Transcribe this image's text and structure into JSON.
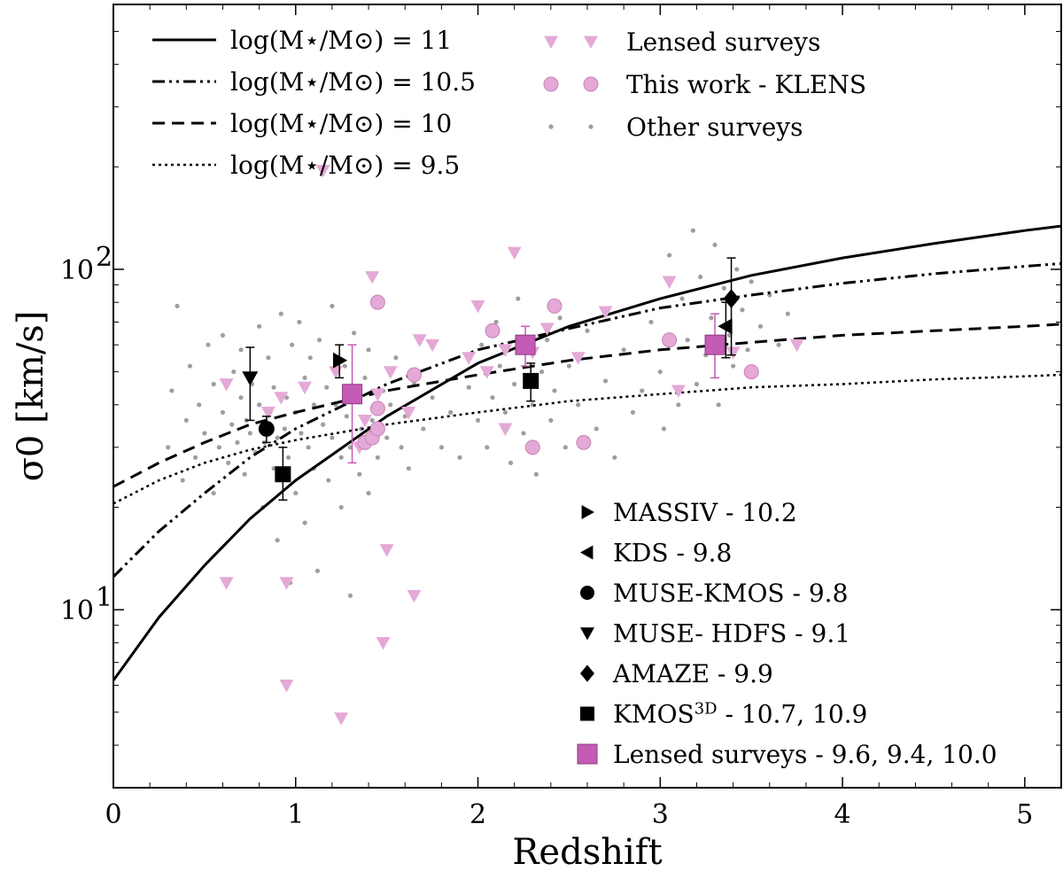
{
  "chart_data": {
    "type": "scatter",
    "xlabel": "Redshift",
    "ylabel": "σ0 [km/s]",
    "xlim": [
      0,
      5.2
    ],
    "ylim": [
      3,
      600
    ],
    "yscale": "log",
    "xticks": [
      {
        "value": 0,
        "label": "0"
      },
      {
        "value": 1,
        "label": "1"
      },
      {
        "value": 2,
        "label": "2"
      },
      {
        "value": 3,
        "label": "3"
      },
      {
        "value": 4,
        "label": "4"
      },
      {
        "value": 5,
        "label": "5"
      }
    ],
    "yticks": [
      {
        "value": 10,
        "label": "10",
        "exp": "1"
      },
      {
        "value": 100,
        "label": "10",
        "exp": "2"
      }
    ],
    "model_curves": [
      {
        "name": "log(M⋆/M⊙) = 11",
        "style": "solid",
        "x": [
          0,
          0.25,
          0.5,
          0.75,
          1,
          1.5,
          2,
          2.5,
          3,
          3.5,
          4,
          4.5,
          5,
          5.2
        ],
        "y": [
          6.2,
          9.5,
          13.5,
          18.5,
          24,
          37,
          53,
          68,
          82,
          96,
          108,
          119,
          130,
          134
        ]
      },
      {
        "name": "log(M⋆/M⊙) = 10.5",
        "style": "dashdot",
        "x": [
          0,
          0.25,
          0.5,
          0.75,
          1,
          1.5,
          2,
          2.5,
          3,
          3.5,
          4,
          4.5,
          5,
          5.2
        ],
        "y": [
          12.5,
          17,
          22,
          28,
          34,
          46,
          58,
          67,
          77,
          84,
          91,
          97,
          102,
          104
        ]
      },
      {
        "name": "log(M⋆/M⊙) = 10",
        "style": "dashed",
        "x": [
          0,
          0.25,
          0.5,
          0.75,
          1,
          1.5,
          2,
          2.5,
          3,
          3.5,
          4,
          4.5,
          5,
          5.2
        ],
        "y": [
          23,
          27,
          31,
          35,
          38,
          44,
          49,
          54,
          58,
          61,
          64,
          66,
          68,
          69
        ]
      },
      {
        "name": "log(M⋆/M⊙) = 9.5",
        "style": "dotted",
        "x": [
          0,
          0.25,
          0.5,
          0.75,
          1,
          1.5,
          2,
          2.5,
          3,
          3.5,
          4,
          4.5,
          5,
          5.2
        ],
        "y": [
          20.5,
          24,
          27,
          29.5,
          31.5,
          35,
          38,
          41,
          43,
          45,
          46,
          47.5,
          48.5,
          49
        ]
      }
    ],
    "lensed_surveys_triangles": {
      "name": "Lensed surveys",
      "color": "#e4a9d6",
      "points": [
        [
          0.62,
          46
        ],
        [
          0.62,
          12
        ],
        [
          0.85,
          38
        ],
        [
          0.92,
          42
        ],
        [
          0.95,
          12
        ],
        [
          0.95,
          6
        ],
        [
          1.05,
          45
        ],
        [
          1.15,
          195
        ],
        [
          1.22,
          50
        ],
        [
          1.25,
          4.8
        ],
        [
          1.35,
          30
        ],
        [
          1.38,
          36
        ],
        [
          1.42,
          95
        ],
        [
          1.45,
          43
        ],
        [
          1.48,
          8
        ],
        [
          1.5,
          15
        ],
        [
          1.52,
          50
        ],
        [
          1.62,
          38
        ],
        [
          1.65,
          11
        ],
        [
          1.68,
          62
        ],
        [
          1.75,
          60
        ],
        [
          1.95,
          55
        ],
        [
          2.0,
          78
        ],
        [
          2.05,
          50
        ],
        [
          2.15,
          58
        ],
        [
          2.15,
          34
        ],
        [
          2.2,
          112
        ],
        [
          2.3,
          57
        ],
        [
          2.38,
          67
        ],
        [
          2.55,
          55
        ],
        [
          2.7,
          75
        ],
        [
          3.05,
          92
        ],
        [
          3.1,
          44
        ],
        [
          3.4,
          57
        ],
        [
          3.75,
          60
        ]
      ]
    },
    "klens_circles": {
      "name": "This work - KLENS",
      "color": "#e4a9d6",
      "edge": "#c882b6",
      "points": [
        [
          1.38,
          31
        ],
        [
          1.42,
          32
        ],
        [
          1.45,
          80
        ],
        [
          1.45,
          39
        ],
        [
          1.45,
          34
        ],
        [
          1.65,
          49
        ],
        [
          2.08,
          66
        ],
        [
          2.3,
          30
        ],
        [
          2.42,
          78
        ],
        [
          2.58,
          31
        ],
        [
          3.05,
          62
        ],
        [
          3.5,
          50
        ]
      ]
    },
    "other_surveys": {
      "name": "Other surveys",
      "color": "#9e9e9e",
      "points": [
        [
          0.3,
          30
        ],
        [
          0.32,
          44
        ],
        [
          0.35,
          78
        ],
        [
          0.38,
          24
        ],
        [
          0.4,
          36
        ],
        [
          0.42,
          52
        ],
        [
          0.45,
          28
        ],
        [
          0.47,
          40
        ],
        [
          0.5,
          33
        ],
        [
          0.52,
          60
        ],
        [
          0.55,
          22
        ],
        [
          0.55,
          46
        ],
        [
          0.58,
          30
        ],
        [
          0.6,
          38
        ],
        [
          0.6,
          64
        ],
        [
          0.63,
          27
        ],
        [
          0.65,
          35
        ],
        [
          0.66,
          50
        ],
        [
          0.68,
          31
        ],
        [
          0.7,
          42
        ],
        [
          0.7,
          58
        ],
        [
          0.72,
          25
        ],
        [
          0.73,
          36
        ],
        [
          0.75,
          33
        ],
        [
          0.76,
          46
        ],
        [
          0.78,
          29
        ],
        [
          0.8,
          40
        ],
        [
          0.8,
          68
        ],
        [
          0.82,
          20
        ],
        [
          0.83,
          31
        ],
        [
          0.85,
          55
        ],
        [
          0.86,
          38
        ],
        [
          0.88,
          26
        ],
        [
          0.88,
          45
        ],
        [
          0.9,
          32
        ],
        [
          0.9,
          16
        ],
        [
          0.92,
          74
        ],
        [
          0.94,
          34
        ],
        [
          0.95,
          42
        ],
        [
          0.96,
          28
        ],
        [
          0.97,
          12
        ],
        [
          0.98,
          60
        ],
        [
          1.0,
          38
        ],
        [
          1.0,
          22
        ],
        [
          1.02,
          70
        ],
        [
          1.03,
          33
        ],
        [
          1.05,
          18
        ],
        [
          1.05,
          48
        ],
        [
          1.07,
          30
        ],
        [
          1.08,
          55
        ],
        [
          1.1,
          26
        ],
        [
          1.1,
          40
        ],
        [
          1.12,
          13
        ],
        [
          1.13,
          62
        ],
        [
          1.15,
          35
        ],
        [
          1.17,
          45
        ],
        [
          1.18,
          24
        ],
        [
          1.2,
          78
        ],
        [
          1.2,
          32
        ],
        [
          1.22,
          40
        ],
        [
          1.25,
          28
        ],
        [
          1.25,
          20
        ],
        [
          1.27,
          52
        ],
        [
          1.28,
          37
        ],
        [
          1.3,
          11
        ],
        [
          1.3,
          30
        ],
        [
          1.32,
          65
        ],
        [
          1.34,
          42
        ],
        [
          1.35,
          25
        ],
        [
          1.36,
          34
        ],
        [
          1.38,
          48
        ],
        [
          1.4,
          58
        ],
        [
          1.4,
          22
        ],
        [
          1.42,
          36
        ],
        [
          1.45,
          28
        ],
        [
          1.48,
          44
        ],
        [
          1.5,
          32
        ],
        [
          1.52,
          40
        ],
        [
          1.55,
          55
        ],
        [
          1.58,
          30
        ],
        [
          1.6,
          37
        ],
        [
          1.62,
          26
        ],
        [
          1.65,
          46
        ],
        [
          1.7,
          34
        ],
        [
          1.75,
          42
        ],
        [
          1.8,
          30
        ],
        [
          1.85,
          38
        ],
        [
          1.9,
          28
        ],
        [
          1.95,
          45
        ],
        [
          2.0,
          36
        ],
        [
          2.02,
          60
        ],
        [
          2.05,
          30
        ],
        [
          2.08,
          42
        ],
        [
          2.1,
          70
        ],
        [
          2.12,
          52
        ],
        [
          2.15,
          38
        ],
        [
          2.18,
          27
        ],
        [
          2.2,
          46
        ],
        [
          2.22,
          82
        ],
        [
          2.25,
          33
        ],
        [
          2.28,
          58
        ],
        [
          2.3,
          40
        ],
        [
          2.32,
          25
        ],
        [
          2.35,
          50
        ],
        [
          2.38,
          62
        ],
        [
          2.4,
          36
        ],
        [
          2.42,
          44
        ],
        [
          2.45,
          72
        ],
        [
          2.48,
          30
        ],
        [
          2.5,
          52
        ],
        [
          2.55,
          40
        ],
        [
          2.6,
          66
        ],
        [
          2.65,
          34
        ],
        [
          2.7,
          47
        ],
        [
          2.75,
          28
        ],
        [
          2.8,
          58
        ],
        [
          2.85,
          38
        ],
        [
          2.9,
          44
        ],
        [
          2.95,
          70
        ],
        [
          3.0,
          50
        ],
        [
          3.02,
          34
        ],
        [
          3.05,
          110
        ],
        [
          3.1,
          40
        ],
        [
          3.12,
          82
        ],
        [
          3.15,
          62
        ],
        [
          3.18,
          130
        ],
        [
          3.2,
          46
        ],
        [
          3.22,
          95
        ],
        [
          3.25,
          56
        ],
        [
          3.28,
          72
        ],
        [
          3.3,
          118
        ],
        [
          3.32,
          40
        ],
        [
          3.35,
          88
        ],
        [
          3.38,
          64
        ],
        [
          3.4,
          52
        ],
        [
          3.42,
          100
        ],
        [
          3.45,
          76
        ],
        [
          3.48,
          58
        ],
        [
          3.5,
          92
        ],
        [
          3.55,
          68
        ],
        [
          3.6,
          84
        ],
        [
          3.65,
          60
        ],
        [
          3.7,
          74
        ]
      ]
    },
    "published_samples": [
      {
        "name": "MASSIV - 10.2",
        "marker": "triangle-right",
        "color": "#000000",
        "x": 1.24,
        "y": 54,
        "yerr_low": 48,
        "yerr_high": 60
      },
      {
        "name": "KDS - 9.8",
        "marker": "triangle-left",
        "color": "#000000",
        "x": 3.36,
        "y": 68,
        "yerr_low": 55,
        "yerr_high": 80
      },
      {
        "name": "MUSE-KMOS - 9.8",
        "marker": "circle",
        "color": "#000000",
        "x": 0.84,
        "y": 34,
        "yerr_low": 31,
        "yerr_high": 37
      },
      {
        "name": "MUSE- HDFS - 9.1",
        "marker": "triangle-down",
        "color": "#000000",
        "x": 0.75,
        "y": 48,
        "yerr_low": 36,
        "yerr_high": 59
      },
      {
        "name": "AMAZE - 9.9",
        "marker": "diamond",
        "color": "#000000",
        "x": 3.39,
        "y": 82,
        "yerr_low": 56,
        "yerr_high": 108
      },
      {
        "name": "KMOS3D - 10.7, 10.9",
        "marker": "square",
        "color": "#000000",
        "x": 0.93,
        "y": 25,
        "yerr_low": 21,
        "yerr_high": 30
      },
      {
        "name": "KMOS3D - 10.7, 10.9",
        "marker": "square",
        "color": "#000000",
        "x": 2.29,
        "y": 47,
        "yerr_low": 41,
        "yerr_high": 53
      },
      {
        "name": "Lensed surveys - 9.6, 9.4, 10.0",
        "marker": "square",
        "color": "#c45bb4",
        "x": 1.31,
        "y": 43,
        "yerr_low": 27,
        "yerr_high": 60
      },
      {
        "name": "Lensed surveys - 9.6, 9.4, 10.0",
        "marker": "square",
        "color": "#c45bb4",
        "x": 2.26,
        "y": 60,
        "yerr_low": 52,
        "yerr_high": 68
      },
      {
        "name": "Lensed surveys - 9.6, 9.4, 10.0",
        "marker": "square",
        "color": "#c45bb4",
        "x": 3.3,
        "y": 60,
        "yerr_low": 48,
        "yerr_high": 74
      }
    ],
    "legend_upper_left": {
      "items": [
        {
          "label": "log(M⋆/M⊙) = 11",
          "style": "solid"
        },
        {
          "label": "log(M⋆/M⊙) = 10.5",
          "style": "dashdot"
        },
        {
          "label": "log(M⋆/M⊙) = 10",
          "style": "dashed"
        },
        {
          "label": "log(M⋆/M⊙) = 9.5",
          "style": "dotted"
        }
      ]
    },
    "legend_upper_right": {
      "items": [
        {
          "label": "Lensed surveys",
          "marker": "triangle-down-pink"
        },
        {
          "label": "This work - KLENS",
          "marker": "circle-pink"
        },
        {
          "label": "Other surveys",
          "marker": "dot-grey"
        }
      ]
    },
    "legend_lower_right": {
      "items": [
        {
          "label": "MASSIV - 10.2",
          "marker": "triangle-right"
        },
        {
          "label": "KDS - 9.8",
          "marker": "triangle-left"
        },
        {
          "label": "MUSE-KMOS - 9.8",
          "marker": "circle"
        },
        {
          "label": "MUSE- HDFS - 9.1",
          "marker": "triangle-down"
        },
        {
          "label": "AMAZE - 9.9",
          "marker": "diamond"
        },
        {
          "label": "KMOS",
          "sup": "3D",
          "suffix": " - 10.7, 10.9",
          "marker": "square"
        },
        {
          "label": "Lensed surveys - 9.6, 9.4, 10.0",
          "marker": "square-pink"
        }
      ]
    }
  }
}
